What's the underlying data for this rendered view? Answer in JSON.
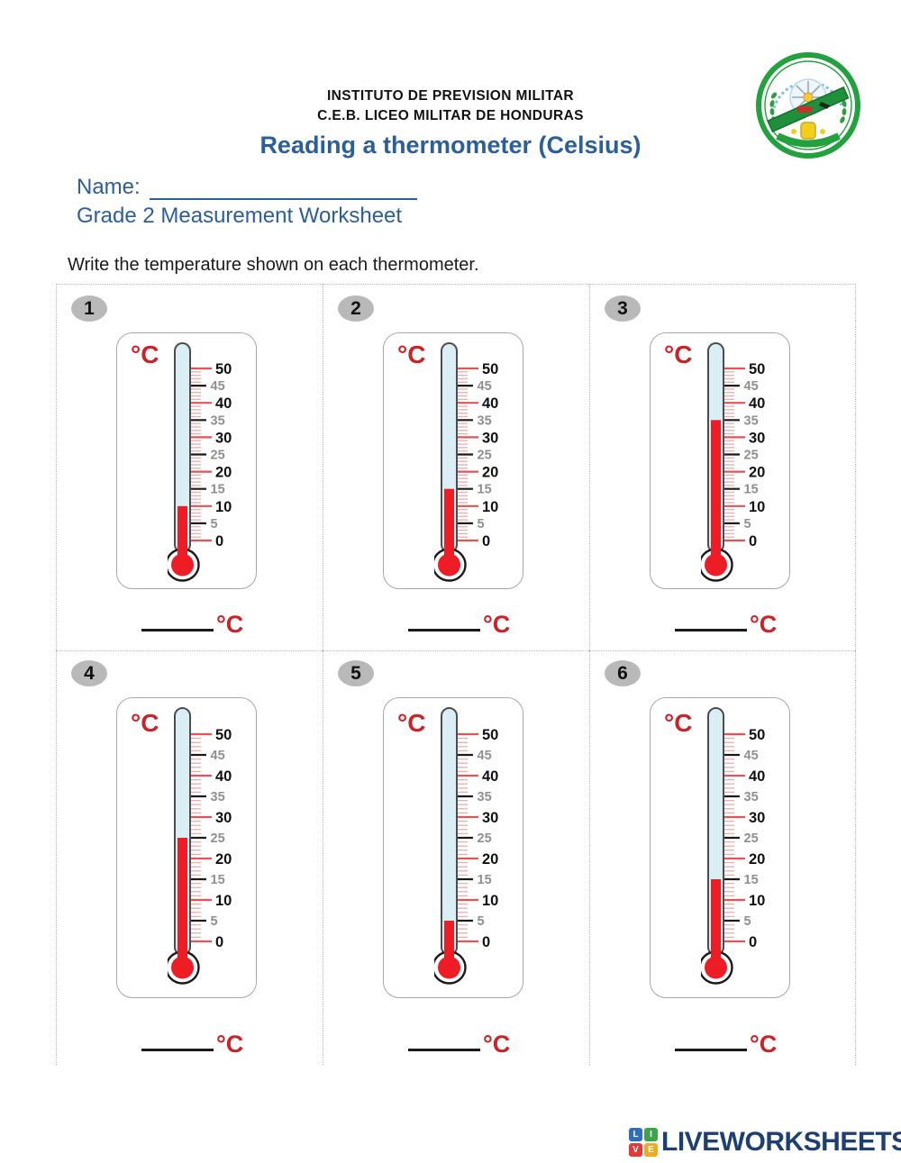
{
  "header": {
    "institution_line1": "INSTITUTO DE PREVISION MILITAR",
    "institution_line2": "C.E.B. LICEO MILITAR DE HONDURAS",
    "title": "Reading a thermometer (Celsius)"
  },
  "student_info": {
    "name_label": "Name:",
    "grade_line": "Grade 2 Measurement Worksheet"
  },
  "instruction": "Write the temperature shown on each thermometer.",
  "unit_label": "°C",
  "scale": {
    "min": 0,
    "max": 50,
    "minor_step": 1,
    "mid_step": 5,
    "major_step": 10,
    "major_labels": [
      0,
      10,
      20,
      30,
      40,
      50
    ],
    "mid_labels": [
      5,
      15,
      25,
      35,
      45
    ]
  },
  "problems": [
    {
      "number": "1",
      "value_c": 10
    },
    {
      "number": "2",
      "value_c": 15
    },
    {
      "number": "3",
      "value_c": 35
    },
    {
      "number": "4",
      "value_c": 25
    },
    {
      "number": "5",
      "value_c": 5
    },
    {
      "number": "6",
      "value_c": 15
    }
  ],
  "footer": {
    "brand": "LIVEWORKSHEETS",
    "logo_letters": [
      "L",
      "I",
      "V",
      "E"
    ],
    "logo_colors": [
      "#2f6fb8",
      "#3aa648",
      "#e03a3a",
      "#f2a922"
    ]
  },
  "colors": {
    "heading_blue": "#2b5f9b",
    "unit_red": "#cc2328",
    "mercury_red": "#ee1c25",
    "tick_red": "#e05555",
    "minor_tick_pink": "#e8adad",
    "mid_label_gray": "#8f8f8f",
    "tube_blue": "#d9eef5",
    "badge_gray": "#b9b9b9",
    "brand_navy": "#1d3f72",
    "crest_green": "#22a13e"
  }
}
